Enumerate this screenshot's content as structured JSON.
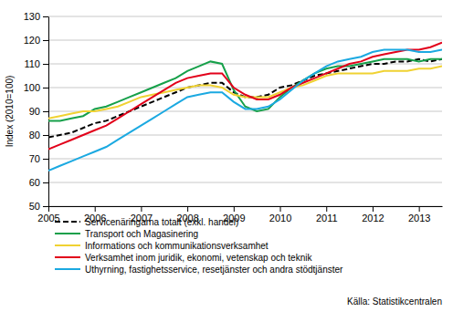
{
  "chart_data": {
    "type": "line",
    "y_label": "Index (2010=100)",
    "source": "Källa: Statistikcentralen",
    "x": [
      2005,
      2005.25,
      2005.5,
      2005.75,
      2006,
      2006.25,
      2006.5,
      2006.75,
      2007,
      2007.25,
      2007.5,
      2007.75,
      2008,
      2008.25,
      2008.5,
      2008.75,
      2009,
      2009.25,
      2009.5,
      2009.75,
      2010,
      2010.25,
      2010.5,
      2010.75,
      2011,
      2011.25,
      2011.5,
      2011.75,
      2012,
      2012.25,
      2012.5,
      2012.75,
      2013,
      2013.25,
      2013.5
    ],
    "xlim": [
      2005,
      2013.5
    ],
    "xticks": [
      2005,
      2006,
      2007,
      2008,
      2009,
      2010,
      2011,
      2012,
      2013
    ],
    "ylim": [
      50,
      130
    ],
    "yticks": [
      50,
      60,
      70,
      80,
      90,
      100,
      110,
      120,
      130
    ],
    "grid": true,
    "series": [
      {
        "name": "Servicenäringarna totalt (exkl. handel)",
        "color": "#000000",
        "line_style": "dashed",
        "values": [
          79,
          80,
          81,
          83,
          85,
          86,
          88,
          90,
          92,
          94,
          96,
          98,
          100,
          101,
          102,
          102,
          98,
          96,
          96,
          97,
          100,
          101,
          103,
          105,
          106,
          107,
          108,
          109,
          110,
          110,
          111,
          111,
          112,
          111,
          112
        ]
      },
      {
        "name": "Transport och Magasinering",
        "color": "#16a04a",
        "line_style": "solid",
        "values": [
          86,
          86,
          87,
          88,
          91,
          92,
          94,
          96,
          98,
          100,
          102,
          104,
          107,
          109,
          111,
          110,
          99,
          92,
          90,
          91,
          96,
          100,
          103,
          106,
          108,
          109,
          109,
          110,
          111,
          112,
          112,
          112,
          111,
          112,
          112
        ]
      },
      {
        "name": "Informations och kommunikationsverksamhet",
        "color": "#f0d232",
        "line_style": "solid",
        "values": [
          87,
          88,
          89,
          90,
          90,
          91,
          92,
          94,
          96,
          97,
          98,
          99,
          100,
          101,
          101,
          100,
          97,
          96,
          96,
          96,
          98,
          100,
          101,
          103,
          105,
          106,
          106,
          106,
          106,
          107,
          107,
          107,
          108,
          108,
          109
        ]
      },
      {
        "name": "Verksamhet inom juridik, ekonomi, vetenskap och teknik",
        "color": "#e2001a",
        "line_style": "solid",
        "values": [
          74,
          76,
          78,
          80,
          82,
          84,
          87,
          90,
          93,
          96,
          99,
          102,
          104,
          105,
          106,
          106,
          100,
          97,
          95,
          95,
          97,
          100,
          102,
          104,
          106,
          108,
          110,
          111,
          113,
          114,
          115,
          116,
          116,
          117,
          119
        ]
      },
      {
        "name": "Uthyrning, fastighetsservice, resetjänster och andra stödtjänster",
        "color": "#1ba9e1",
        "line_style": "solid",
        "values": [
          65,
          67,
          69,
          71,
          73,
          75,
          78,
          81,
          84,
          87,
          90,
          93,
          96,
          97,
          98,
          98,
          94,
          91,
          91,
          92,
          95,
          99,
          103,
          106,
          109,
          111,
          112,
          113,
          115,
          116,
          116,
          116,
          115,
          115,
          116
        ]
      }
    ]
  }
}
